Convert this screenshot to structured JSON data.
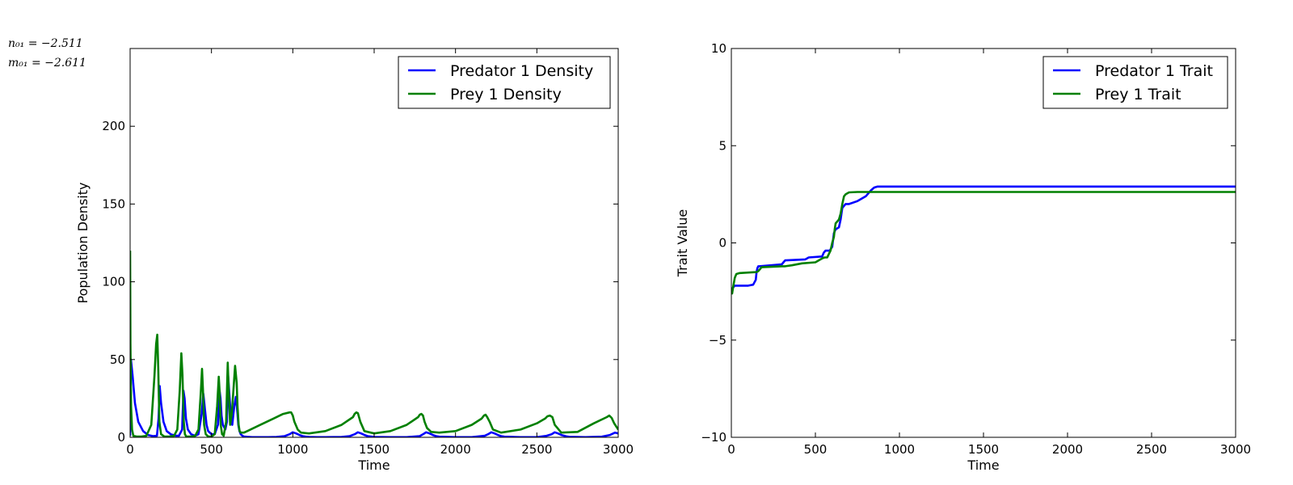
{
  "params": {
    "line1": "n₀₁ = −2.511",
    "line2": "m₀₁ = −2.611"
  },
  "colors": {
    "predator": "#0000ff",
    "prey": "#008000"
  },
  "chart_data": [
    {
      "type": "line",
      "xlabel": "Time",
      "ylabel": "Population Density",
      "xlim": [
        0,
        3000
      ],
      "ylim": [
        0,
        250
      ],
      "xticks": [
        "0",
        "500",
        "1000",
        "1500",
        "2000",
        "2500",
        "3000"
      ],
      "yticks": [
        "0",
        "50",
        "100",
        "150",
        "200"
      ],
      "legend": "top-right",
      "grid": false,
      "series": [
        {
          "name": "Predator 1 Density",
          "color": "#0000ff",
          "x": [
            0,
            5,
            15,
            30,
            50,
            80,
            110,
            140,
            165,
            175,
            182,
            190,
            205,
            225,
            250,
            280,
            300,
            320,
            328,
            335,
            343,
            355,
            375,
            400,
            420,
            440,
            450,
            460,
            470,
            480,
            500,
            520,
            540,
            550,
            556,
            562,
            570,
            585,
            595,
            602,
            610,
            618,
            628,
            640,
            650,
            660,
            665,
            672,
            680,
            690,
            700,
            720,
            750,
            800,
            850,
            900,
            950,
            980,
            1000,
            1020,
            1040,
            1060,
            1080,
            1100,
            1150,
            1200,
            1300,
            1350,
            1380,
            1400,
            1420,
            1440,
            1460,
            1500,
            1600,
            1700,
            1780,
            1800,
            1820,
            1840,
            1860,
            1880,
            1900,
            2000,
            2100,
            2180,
            2200,
            2220,
            2240,
            2260,
            2280,
            2300,
            2400,
            2500,
            2560,
            2590,
            2610,
            2630,
            2650,
            2680,
            2700,
            2800,
            2900,
            2950,
            2980,
            3000
          ],
          "y": [
            1,
            50,
            40,
            22,
            10,
            4,
            1.5,
            0.8,
            1,
            12,
            33,
            22,
            10,
            4,
            2,
            1,
            1,
            5,
            30,
            25,
            12,
            5,
            2,
            1,
            2,
            15,
            28,
            18,
            8,
            4,
            2,
            2,
            8,
            30,
            25,
            14,
            8,
            5,
            10,
            40,
            28,
            15,
            8,
            20,
            26,
            15,
            8,
            4,
            2,
            1,
            0.5,
            0.3,
            0.1,
            0.1,
            0.1,
            0.2,
            0.8,
            2,
            3.2,
            2.5,
            1.5,
            0.8,
            0.4,
            0.2,
            0.1,
            0.1,
            0.2,
            0.8,
            2,
            3.2,
            2.5,
            1.5,
            0.8,
            0.2,
            0.1,
            0.1,
            0.8,
            2,
            3.2,
            2.5,
            1.5,
            0.8,
            0.4,
            0.1,
            0.1,
            1,
            2,
            3.2,
            2.5,
            1.5,
            0.8,
            0.4,
            0.1,
            0.1,
            1,
            2,
            3.2,
            2.5,
            1.5,
            0.6,
            0.3,
            0.1,
            0.4,
            1.5,
            3,
            2.5
          ]
        },
        {
          "name": "Prey 1 Density",
          "color": "#008000",
          "x": [
            0,
            2,
            6,
            12,
            20,
            40,
            70,
            100,
            130,
            150,
            160,
            167,
            173,
            180,
            190,
            210,
            240,
            270,
            290,
            305,
            315,
            322,
            330,
            337,
            345,
            360,
            380,
            400,
            420,
            435,
            442,
            448,
            455,
            465,
            480,
            500,
            520,
            535,
            545,
            550,
            557,
            565,
            575,
            590,
            600,
            608,
            615,
            625,
            635,
            645,
            655,
            660,
            667,
            673,
            680,
            690,
            700,
            720,
            800,
            880,
            940,
            980,
            990,
            1000,
            1010,
            1030,
            1050,
            1100,
            1200,
            1300,
            1370,
            1380,
            1390,
            1400,
            1415,
            1440,
            1500,
            1600,
            1700,
            1770,
            1780,
            1790,
            1800,
            1810,
            1825,
            1850,
            1900,
            2000,
            2100,
            2160,
            2175,
            2185,
            2195,
            2210,
            2230,
            2280,
            2400,
            2500,
            2550,
            2565,
            2580,
            2595,
            2610,
            2650,
            2750,
            2850,
            2930,
            2945,
            2960,
            2975,
            3000
          ],
          "y": [
            120,
            60,
            20,
            5,
            1,
            0.5,
            0.5,
            1,
            8,
            40,
            60,
            66,
            45,
            10,
            2,
            0.5,
            0.5,
            1,
            5,
            30,
            54,
            40,
            10,
            2,
            0.5,
            0.5,
            0.5,
            1,
            5,
            30,
            44,
            30,
            8,
            2,
            0.5,
            0.5,
            2,
            20,
            39,
            30,
            8,
            2,
            1,
            10,
            48,
            25,
            8,
            15,
            30,
            46,
            35,
            20,
            8,
            4,
            3,
            3,
            3,
            4,
            8,
            12,
            15,
            16,
            16,
            14,
            10,
            5,
            3,
            2.5,
            4,
            8,
            13,
            15,
            16,
            15.5,
            10,
            4,
            2.5,
            4,
            8,
            13,
            14.5,
            15,
            14,
            10,
            6,
            3.5,
            3,
            4,
            8,
            12,
            14,
            14.5,
            13,
            10,
            5,
            3,
            5,
            9,
            12,
            13.5,
            14,
            13,
            8,
            3,
            3.5,
            9,
            13,
            14,
            12.5,
            9,
            5
          ]
        }
      ]
    },
    {
      "type": "line",
      "xlabel": "Time",
      "ylabel": "Trait Value",
      "xlim": [
        0,
        3000
      ],
      "ylim": [
        -10,
        10
      ],
      "xticks": [
        "0",
        "500",
        "1000",
        "1500",
        "2000",
        "2500",
        "3000"
      ],
      "yticks": [
        "10",
        "5",
        "0",
        "−5",
        "−10"
      ],
      "legend": "top-right",
      "grid": false,
      "series": [
        {
          "name": "Predator 1 Trait",
          "color": "#0000ff",
          "x": [
            0,
            5,
            10,
            20,
            100,
            130,
            145,
            150,
            155,
            160,
            165,
            300,
            310,
            320,
            325,
            440,
            450,
            460,
            540,
            550,
            560,
            585,
            600,
            610,
            620,
            640,
            650,
            660,
            680,
            700,
            750,
            800,
            830,
            850,
            870,
            900,
            3000
          ],
          "y": [
            -2.3,
            -2.4,
            -2.3,
            -2.2,
            -2.2,
            -2.15,
            -1.9,
            -1.5,
            -1.3,
            -1.2,
            -1.2,
            -1.1,
            -1.0,
            -0.9,
            -0.9,
            -0.85,
            -0.8,
            -0.75,
            -0.7,
            -0.5,
            -0.4,
            -0.4,
            -0.2,
            0.5,
            0.7,
            0.8,
            1.2,
            1.8,
            2.0,
            2.0,
            2.15,
            2.4,
            2.7,
            2.85,
            2.9,
            2.9,
            2.9
          ]
        },
        {
          "name": "Prey 1 Trait",
          "color": "#008000",
          "x": [
            0,
            5,
            10,
            20,
            30,
            50,
            150,
            160,
            170,
            175,
            180,
            300,
            320,
            360,
            420,
            500,
            540,
            555,
            570,
            590,
            600,
            610,
            615,
            620,
            640,
            650,
            660,
            670,
            680,
            700,
            750,
            800,
            850,
            900,
            3000
          ],
          "y": [
            -2.5,
            -2.6,
            -2.3,
            -1.8,
            -1.6,
            -1.55,
            -1.5,
            -1.45,
            -1.35,
            -1.3,
            -1.25,
            -1.2,
            -1.2,
            -1.15,
            -1.05,
            -1.0,
            -0.8,
            -0.75,
            -0.75,
            -0.4,
            0.0,
            0.3,
            0.7,
            1.0,
            1.2,
            1.5,
            2.0,
            2.4,
            2.5,
            2.6,
            2.62,
            2.62,
            2.62,
            2.62,
            2.62
          ]
        }
      ]
    }
  ]
}
